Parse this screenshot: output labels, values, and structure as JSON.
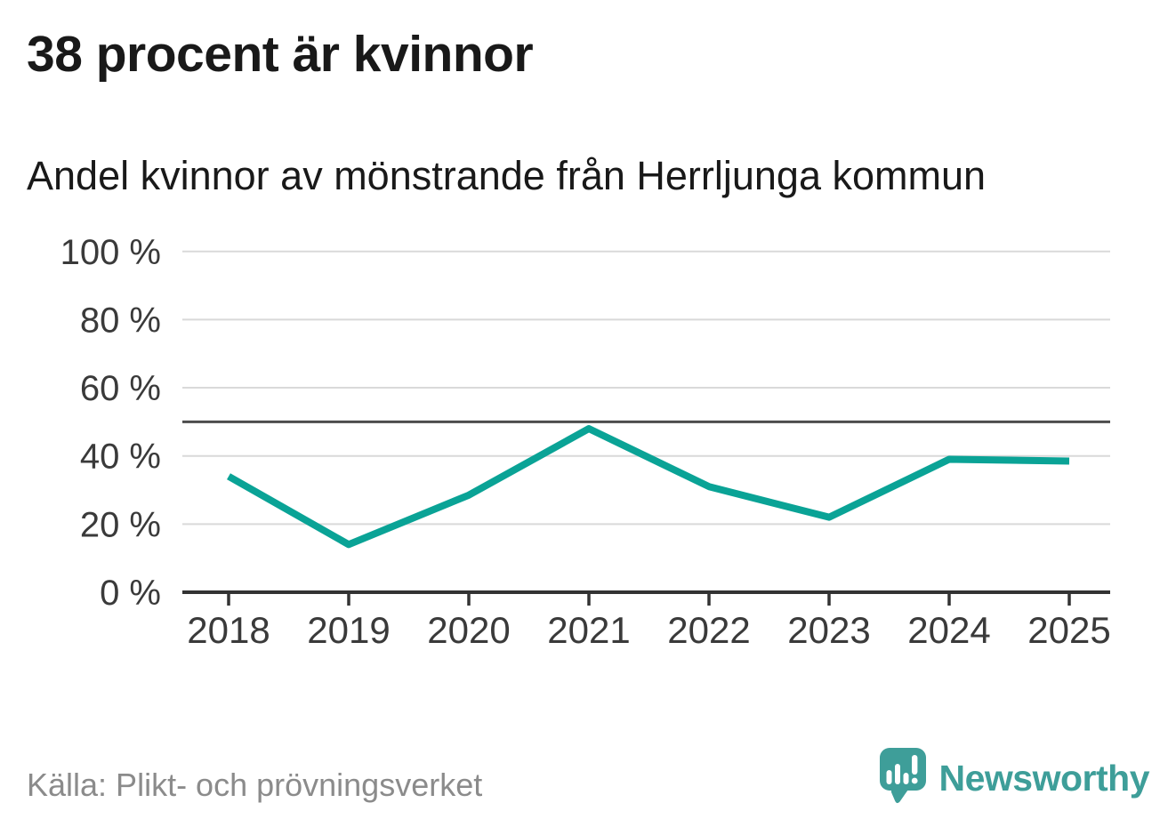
{
  "header": {
    "title": "38 procent är kvinnor",
    "subtitle": "Andel kvinnor av mönstrande från Herrljunga kommun"
  },
  "chart_data": {
    "type": "line",
    "title": "38 procent är kvinnor",
    "subtitle": "Andel kvinnor av mönstrande från Herrljunga kommun",
    "categories": [
      "2018",
      "2019",
      "2020",
      "2021",
      "2022",
      "2023",
      "2024",
      "2025"
    ],
    "series": [
      {
        "name": "Andel kvinnor av mönstrande",
        "values": [
          34,
          14,
          28.5,
          48,
          31,
          22,
          39,
          38.5
        ]
      }
    ],
    "unit": "%",
    "xlabel": "",
    "ylabel": "",
    "ylim": [
      0,
      100
    ],
    "yticks": [
      0,
      20,
      40,
      60,
      80,
      100
    ],
    "ytick_format": "{v} %",
    "reference_line": 50,
    "grid": "horizontal-light",
    "legend": "none"
  },
  "footer": {
    "source": "Källa: Plikt- och prövningsverket",
    "brand": "Newsworthy",
    "brand_icon": "newsworthy-speech-bubble-bar-chart-icon"
  },
  "colors": {
    "line": "#0aa396",
    "grid": "#d9d9d9",
    "reference_line": "#4d4d4d",
    "axis": "#333333",
    "axis_label": "#3a3a3a",
    "title_text": "#191919",
    "source_text": "#8b8b8b",
    "brand": "#3e9e99",
    "background": "#ffffff"
  }
}
